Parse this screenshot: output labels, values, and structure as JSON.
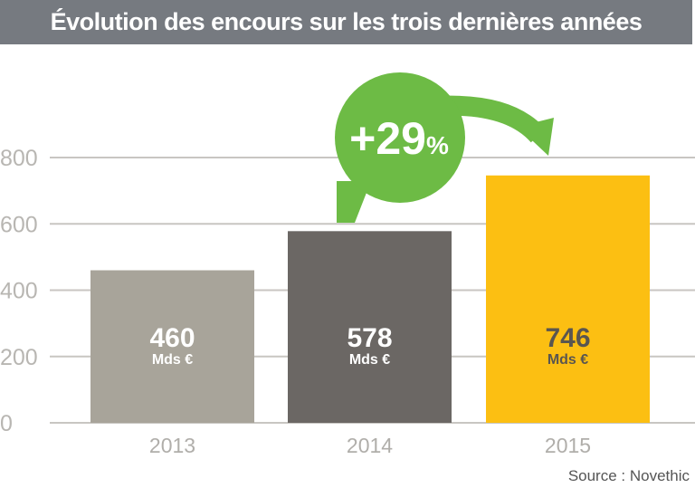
{
  "chart_data": {
    "type": "bar",
    "title": "Évolution des encours sur les trois dernières années",
    "categories": [
      "2013",
      "2014",
      "2015"
    ],
    "values": [
      460,
      578,
      746
    ],
    "value_labels": [
      "460",
      "578",
      "746"
    ],
    "unit_label": "Mds €",
    "ylim": [
      0,
      800
    ],
    "yticks": [
      0,
      200,
      400,
      600,
      800
    ],
    "grid": true,
    "colors": [
      "#a8a49a",
      "#6b6764",
      "#fcbf12"
    ],
    "label_colors": [
      "#ffffff",
      "#ffffff",
      "#5a5650"
    ],
    "annotation": {
      "text": "+29",
      "suffix": "%",
      "color": "#6dbb45",
      "from": "2014",
      "to": "2015"
    },
    "source": "Source : Novethic"
  }
}
